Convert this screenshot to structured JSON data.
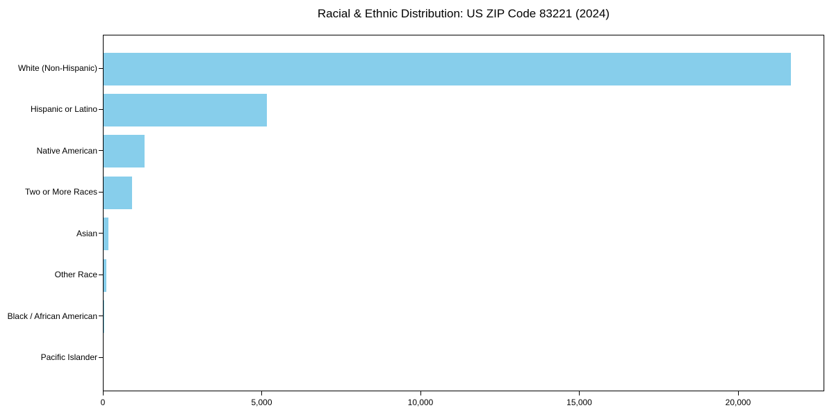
{
  "title": "Racial & Ethnic Distribution: US ZIP Code 83221 (2024)",
  "colors": {
    "bar": "#87CEEB",
    "axis": "#000000",
    "text": "#000000",
    "background": "#FFFFFF"
  },
  "chart_data": {
    "type": "bar",
    "orientation": "horizontal",
    "title": "Racial & Ethnic Distribution: US ZIP Code 83221 (2024)",
    "categories": [
      "White (Non-Hispanic)",
      "Hispanic or Latino",
      "Native American",
      "Two or More Races",
      "Asian",
      "Other Race",
      "Black / African American",
      "Pacific Islander"
    ],
    "values": [
      21630,
      5150,
      1285,
      905,
      150,
      80,
      20,
      0
    ],
    "xlabel": "",
    "ylabel": "",
    "xlim": [
      0,
      22713
    ],
    "xticks": {
      "values": [
        0,
        5000,
        10000,
        15000,
        20000
      ],
      "labels": [
        "0",
        "5,000",
        "10,000",
        "15,000",
        "20,000"
      ]
    },
    "grid": false,
    "legend_position": "none",
    "bar_color": "#87CEEB"
  }
}
